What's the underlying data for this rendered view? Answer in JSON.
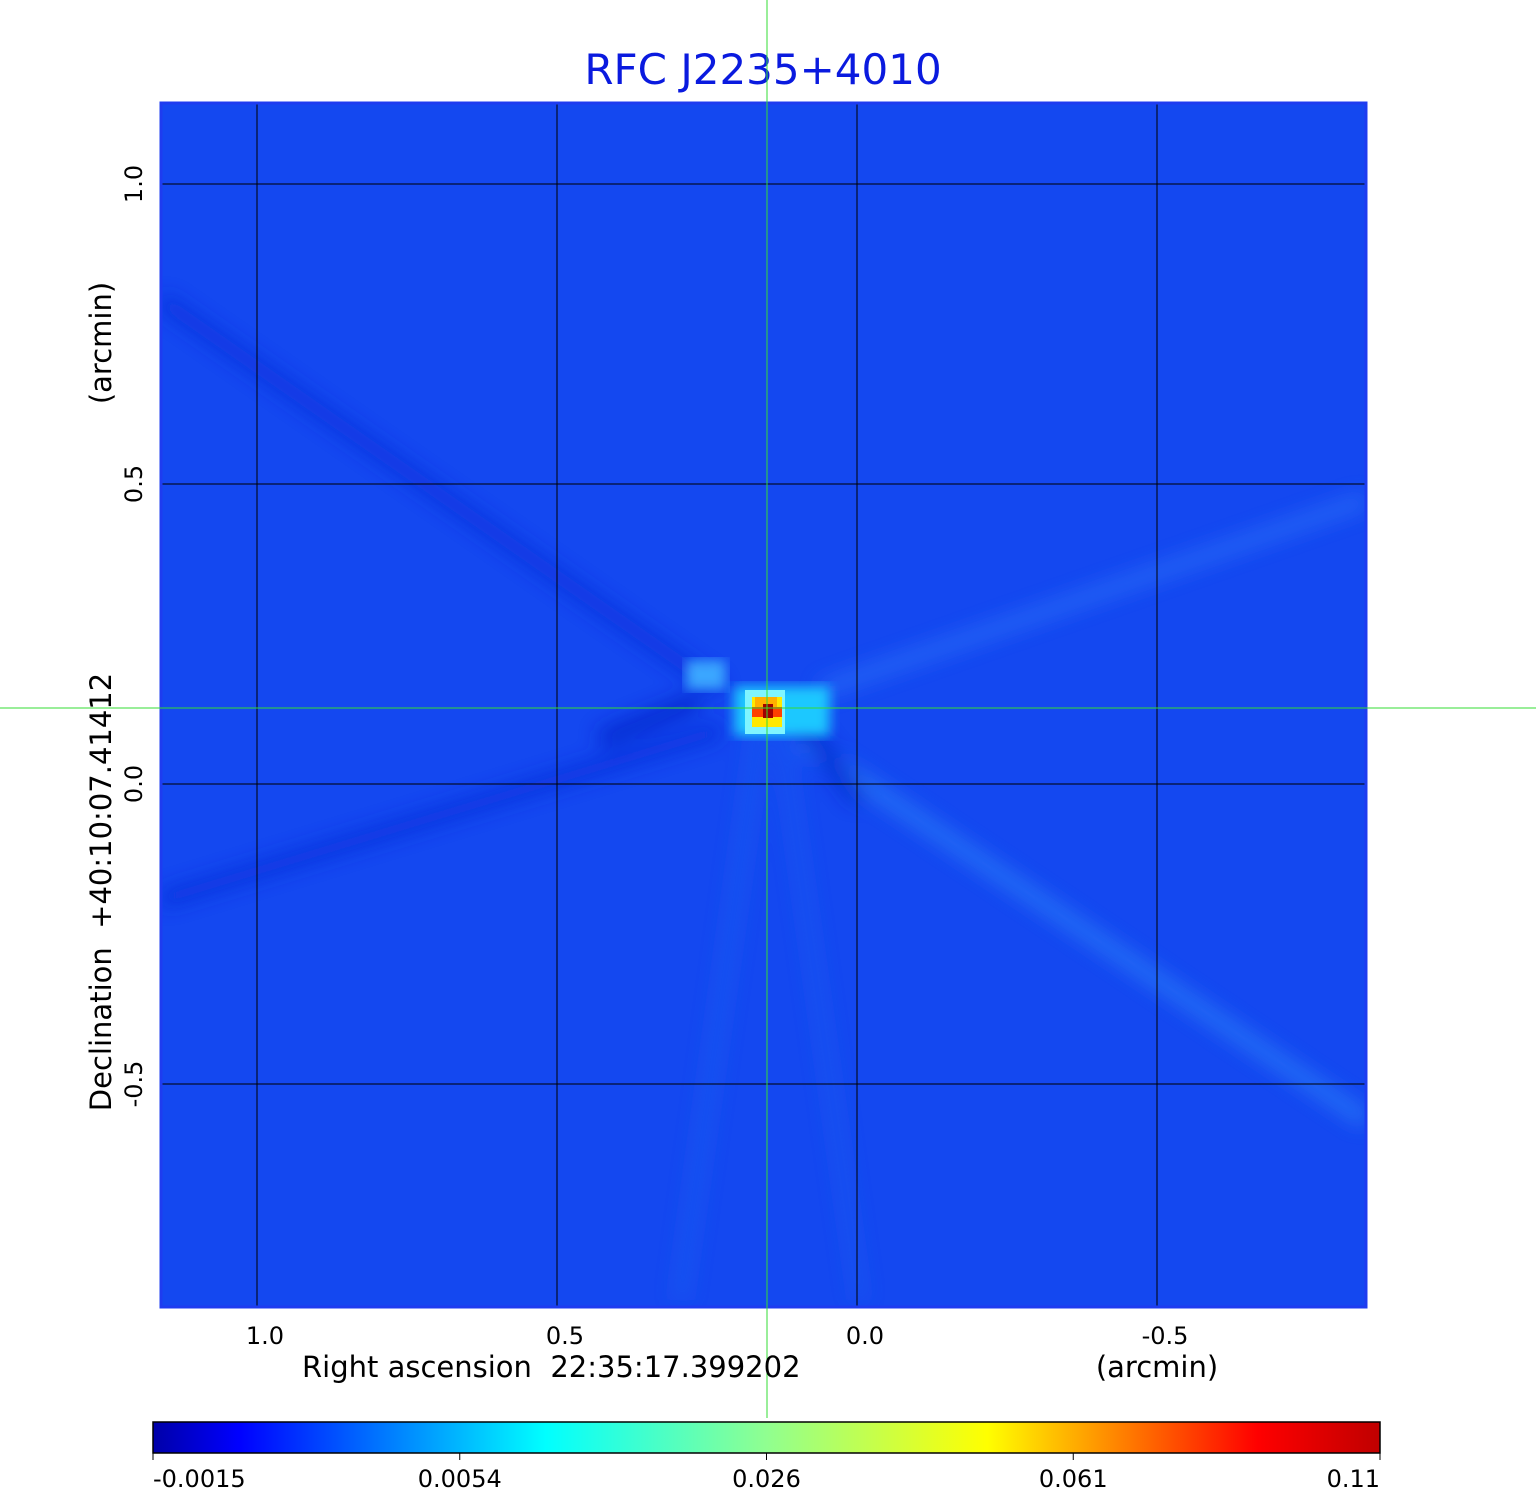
{
  "chart_data": {
    "type": "heatmap",
    "title": "RFC J2235+4010",
    "xlabel": "Right ascension  22:35:17.399202",
    "xlabel_units": "(arcmin)",
    "ylabel": "Declination  +40:10:07.41412",
    "ylabel_units": "(arcmin)",
    "x_ticks": [
      {
        "value": 1.0,
        "label": "1.0"
      },
      {
        "value": 0.5,
        "label": "0.5"
      },
      {
        "value": 0.0,
        "label": "0.0"
      },
      {
        "value": -0.5,
        "label": "-0.5"
      }
    ],
    "y_ticks": [
      {
        "value": 1.0,
        "label": "1.0"
      },
      {
        "value": 0.5,
        "label": "0.5"
      },
      {
        "value": 0.0,
        "label": "0.0"
      },
      {
        "value": -0.5,
        "label": "-0.5"
      }
    ],
    "xlim": [
      1.16,
      -0.85
    ],
    "ylim": [
      -0.87,
      1.14
    ],
    "grid": true,
    "crosshair": {
      "x": 0.15,
      "y": 0.125
    },
    "source_peak": {
      "x": 0.15,
      "y": 0.125,
      "value": 0.11
    },
    "colorbar": {
      "colormap": "jet",
      "ticks": [
        "-0.0015",
        "0.0054",
        "0.026",
        "0.061",
        "0.11"
      ],
      "stops": [
        "#00008f",
        "#0000ff",
        "#00ffff",
        "#ffff00",
        "#ff0000",
        "#800000"
      ]
    },
    "colors": {
      "title": "#0a1adf",
      "background_pixel": "#1448f0",
      "crosshair": "#33dd33"
    }
  }
}
